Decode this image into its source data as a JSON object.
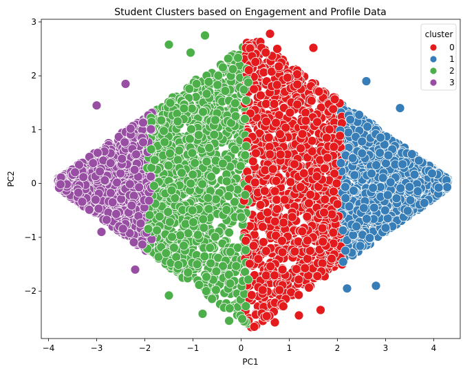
{
  "chart_data": {
    "type": "scatter",
    "title": "Student Clusters based on Engagement and Profile Data",
    "xlabel": "PC1",
    "ylabel": "PC2",
    "xlim": [
      -4.15,
      4.55
    ],
    "ylim": [
      -2.88,
      3.05
    ],
    "xticks": [
      -4,
      -3,
      -2,
      -1,
      0,
      1,
      2,
      3,
      4
    ],
    "yticks": [
      -2,
      -1,
      0,
      1,
      2,
      3
    ],
    "xtick_labels": [
      "−4",
      "−3",
      "−2",
      "−1",
      "0",
      "1",
      "2",
      "3",
      "4"
    ],
    "ytick_labels": [
      "−2",
      "−1",
      "0",
      "1",
      "2",
      "3"
    ],
    "grid": false,
    "legend": {
      "title": "cluster",
      "placement": "top-right",
      "entries": [
        "0",
        "1",
        "2",
        "3"
      ]
    },
    "series": [
      {
        "name": "0",
        "color": "#e41a1c",
        "x_range": [
          0.05,
          2.1
        ],
        "notable_points": [
          [
            0.6,
            2.78
          ],
          [
            0.4,
            2.63
          ],
          [
            1.5,
            2.52
          ],
          [
            0.75,
            2.5
          ],
          [
            0.25,
            2.5
          ],
          [
            0.7,
            -2.58
          ],
          [
            1.2,
            -2.45
          ],
          [
            1.65,
            -2.35
          ],
          [
            0.3,
            -2.42
          ]
        ]
      },
      {
        "name": "1",
        "color": "#377eb8",
        "x_range": [
          2.05,
          4.3
        ],
        "notable_points": [
          [
            4.3,
            0.05
          ],
          [
            2.2,
            1.3
          ],
          [
            2.2,
            -1.95
          ],
          [
            2.8,
            -1.9
          ],
          [
            3.3,
            1.4
          ],
          [
            2.6,
            1.9
          ]
        ]
      },
      {
        "name": "2",
        "color": "#4daf4a",
        "x_range": [
          -1.95,
          0.15
        ],
        "notable_points": [
          [
            -0.75,
            2.75
          ],
          [
            -1.5,
            2.58
          ],
          [
            -1.05,
            2.43
          ],
          [
            -0.25,
            -2.55
          ],
          [
            -1.5,
            -2.08
          ],
          [
            -0.8,
            -2.42
          ]
        ]
      },
      {
        "name": "3",
        "color": "#984ea3",
        "x_range": [
          -3.8,
          -1.85
        ],
        "notable_points": [
          [
            -3.8,
            0.1
          ],
          [
            -2.4,
            1.85
          ],
          [
            -2.2,
            -1.6
          ],
          [
            -3.0,
            1.45
          ],
          [
            -2.9,
            -0.9
          ]
        ]
      }
    ]
  }
}
